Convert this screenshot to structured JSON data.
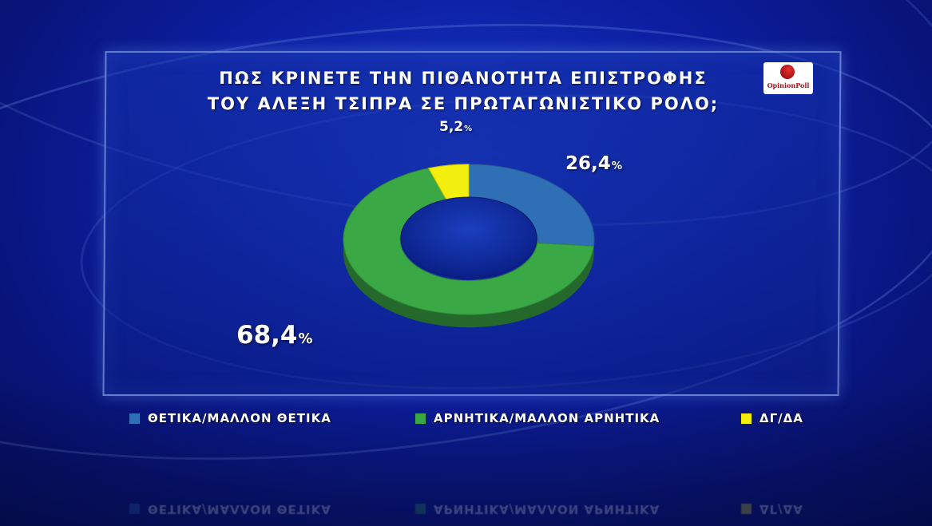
{
  "title_line1": "ΠΩΣ ΚΡΙΝΕΤΕ ΤΗΝ ΠΙΘΑΝΟΤΗΤΑ ΕΠΙΣΤΡΟΦΗΣ",
  "title_line2": "ΤΟΥ ΑΛΕΞΗ ΤΣΙΠΡΑ ΣΕ ΠΡΩΤΑΓΩΝΙΣΤΙΚΟ ΡΟΛΟ;",
  "logo_text": "OpinionPoll",
  "chart_data": {
    "type": "pie",
    "style": "donut",
    "title": "ΠΩΣ ΚΡΙΝΕΤΕ ΤΗΝ ΠΙΘΑΝΟΤΗΤΑ ΕΠΙΣΤΡΟΦΗΣ ΤΟΥ ΑΛΕΞΗ ΤΣΙΠΡΑ ΣΕ ΠΡΩΤΑΓΩΝΙΣΤΙΚΟ ΡΟΛΟ;",
    "slices": [
      {
        "label": "ΘΕΤΙΚΑ/ΜΑΛΛΟΝ  ΘΕΤΙΚΑ",
        "value": 26.4,
        "display": "26,4",
        "color": "#2f6fb5"
      },
      {
        "label": "ΑΡΝΗΤΙΚΑ/ΜΑΛΛΟΝ  ΑΡΝΗΤΙΚΑ",
        "value": 68.4,
        "display": "68,4",
        "color": "#3aa845"
      },
      {
        "label": "ΔΓ/ΔΑ",
        "value": 5.2,
        "display": "5,2",
        "color": "#f2ee0e"
      }
    ],
    "unit": "%",
    "legend_position": "bottom"
  }
}
